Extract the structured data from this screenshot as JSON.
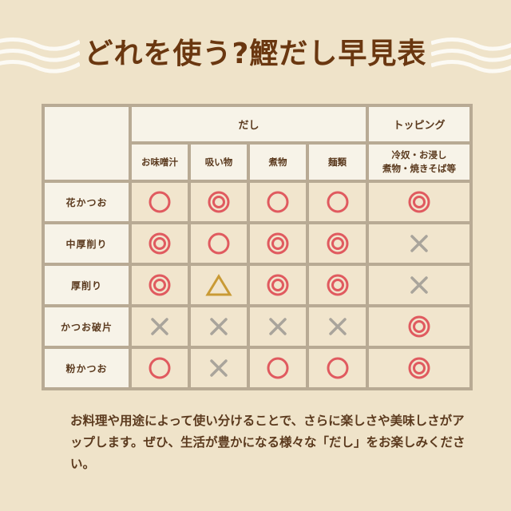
{
  "title": "どれを使う?鰹だし早見表",
  "colors": {
    "background": "#efe3c9",
    "title": "#6a3710",
    "circle": "#e05a5f",
    "triangle": "#c99a35",
    "cross": "#a9a49b",
    "border": "#b8aa94"
  },
  "table": {
    "group_headers": [
      "だし",
      "トッピング"
    ],
    "columns": [
      "お味噌汁",
      "吸い物",
      "煮物",
      "麺類"
    ],
    "topping_column": [
      "冷奴・お浸し",
      "煮物・焼きそば等"
    ],
    "rows": [
      {
        "label": "花かつお",
        "marks": [
          "circle",
          "double-circle",
          "circle",
          "circle",
          "double-circle"
        ]
      },
      {
        "label": "中厚削り",
        "marks": [
          "double-circle",
          "circle",
          "double-circle",
          "double-circle",
          "cross"
        ]
      },
      {
        "label": "厚削り",
        "marks": [
          "double-circle",
          "triangle",
          "double-circle",
          "double-circle",
          "cross"
        ]
      },
      {
        "label": "かつお破片",
        "marks": [
          "cross",
          "cross",
          "cross",
          "cross",
          "double-circle"
        ]
      },
      {
        "label": "粉かつお",
        "marks": [
          "circle",
          "cross",
          "circle",
          "circle",
          "double-circle"
        ]
      }
    ]
  },
  "description": "お料理や用途によって使い分けることで、さらに楽しさや美味しさがアップします。ぜひ、生活が豊かになる様々な「だし」をお楽しみください。"
}
